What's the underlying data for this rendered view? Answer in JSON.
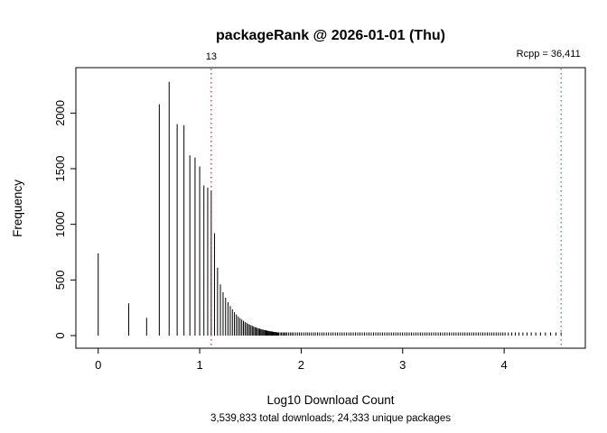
{
  "chart_data": {
    "type": "histogram",
    "title": "packageRank @ 2026-01-01 (Thu)",
    "xlabel": "Log10 Download Count",
    "ylabel": "Frequency",
    "subtitle": "3,539,833 total downloads; 24,333 unique packages",
    "x_ticks": [
      0,
      1,
      2,
      3,
      4
    ],
    "y_ticks": [
      0,
      500,
      1000,
      1500,
      2000
    ],
    "xlim": [
      -0.22,
      4.8
    ],
    "ylim": [
      0,
      2400
    ],
    "grid": false,
    "spike_color": "#000000",
    "annotations": [
      {
        "x_log10": 1.1139,
        "label": "13",
        "color": "#e8112d",
        "align": "center"
      },
      {
        "x_log10": 4.5612,
        "label": "Rcpp = 36,411",
        "color": "#1e78d2",
        "align": "left-of-line"
      }
    ],
    "spikes": [
      [
        1,
        740
      ],
      [
        2,
        290
      ],
      [
        3,
        160
      ],
      [
        4,
        2080
      ],
      [
        5,
        2280
      ],
      [
        6,
        1900
      ],
      [
        7,
        1890
      ],
      [
        8,
        1620
      ],
      [
        9,
        1600
      ],
      [
        10,
        1520
      ],
      [
        11,
        1350
      ],
      [
        12,
        1330
      ],
      [
        13,
        1300
      ],
      [
        14,
        920
      ],
      [
        15,
        610
      ],
      [
        16,
        460
      ],
      [
        17,
        390
      ],
      [
        18,
        340
      ],
      [
        19,
        300
      ],
      [
        20,
        265
      ],
      [
        21,
        235
      ],
      [
        22,
        210
      ],
      [
        23,
        190
      ],
      [
        24,
        172
      ],
      [
        25,
        157
      ],
      [
        26,
        144
      ],
      [
        27,
        133
      ],
      [
        28,
        123
      ],
      [
        29,
        114
      ],
      [
        30,
        106
      ],
      [
        31,
        99
      ],
      [
        32,
        93
      ],
      [
        33,
        87
      ],
      [
        34,
        82
      ],
      [
        35,
        77
      ],
      [
        36,
        73
      ],
      [
        37,
        69
      ],
      [
        38,
        65
      ],
      [
        39,
        62
      ],
      [
        40,
        59
      ],
      [
        41,
        56
      ],
      [
        42,
        53
      ],
      [
        43,
        51
      ],
      [
        44,
        49
      ],
      [
        45,
        47
      ],
      [
        46,
        45
      ],
      [
        47,
        43
      ],
      [
        48,
        41
      ],
      [
        49,
        40
      ],
      [
        50,
        38
      ],
      [
        51,
        37
      ],
      [
        52,
        36
      ],
      [
        53,
        34
      ],
      [
        54,
        33
      ],
      [
        55,
        32
      ],
      [
        56,
        31
      ],
      [
        57,
        30
      ],
      [
        58,
        29
      ],
      [
        59,
        28
      ],
      [
        60,
        27
      ],
      [
        62,
        26
      ],
      [
        64,
        25
      ],
      [
        66,
        24
      ],
      [
        68,
        23
      ],
      [
        70,
        22
      ],
      [
        72,
        21
      ],
      [
        75,
        20
      ],
      [
        78,
        19
      ],
      [
        81,
        18
      ],
      [
        84,
        17
      ],
      [
        88,
        16
      ],
      [
        92,
        15
      ],
      [
        96,
        14
      ],
      [
        100,
        13
      ],
      [
        105,
        12
      ],
      [
        110,
        11
      ],
      [
        115,
        11
      ],
      [
        120,
        10
      ],
      [
        126,
        10
      ],
      [
        132,
        9
      ],
      [
        138,
        9
      ],
      [
        145,
        8
      ],
      [
        152,
        8
      ],
      [
        160,
        7
      ],
      [
        168,
        7
      ],
      [
        177,
        6
      ],
      [
        186,
        6
      ],
      [
        196,
        5
      ],
      [
        206,
        5
      ],
      [
        217,
        5
      ],
      [
        228,
        4
      ],
      [
        240,
        4
      ],
      [
        253,
        4
      ],
      [
        266,
        3
      ],
      [
        280,
        3
      ],
      [
        295,
        3
      ],
      [
        310,
        3
      ],
      [
        326,
        2
      ],
      [
        343,
        2
      ],
      [
        361,
        2
      ],
      [
        380,
        2
      ],
      [
        400,
        2
      ],
      [
        421,
        2
      ],
      [
        443,
        1
      ],
      [
        466,
        1
      ],
      [
        490,
        1
      ],
      [
        516,
        1
      ],
      [
        543,
        1
      ]
    ],
    "tail_counts_freq1": [
      571,
      601,
      632,
      665,
      700,
      736,
      774,
      814,
      856,
      901,
      948,
      997,
      1049,
      1103,
      1160,
      1220,
      1283,
      1350,
      1420,
      1494,
      1571,
      1653,
      1739,
      1829,
      1924,
      2024,
      2129,
      2240,
      2356,
      2478,
      2607,
      2742,
      2884,
      3034,
      3192,
      3357,
      3531,
      3714,
      3907,
      4110,
      4323,
      4547,
      4783,
      5031,
      5292,
      5567,
      5856,
      6160,
      6479,
      6815,
      7169,
      7541,
      7932,
      8343,
      8776,
      9231,
      9710,
      10213,
      11000,
      11900,
      12900,
      14000,
      15300,
      16800,
      18500,
      20500,
      22800,
      25500,
      28700,
      32400,
      36411
    ]
  }
}
